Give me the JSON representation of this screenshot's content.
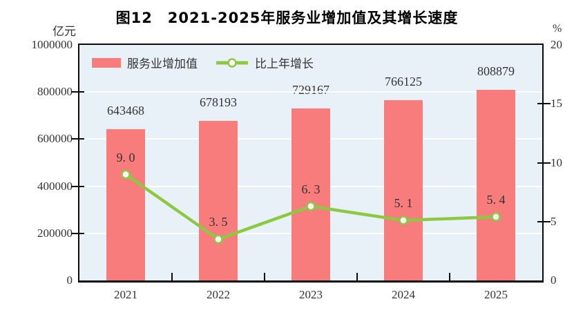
{
  "chart_data": {
    "type": "bar",
    "title": "图12　2021-2025年服务业增加值及其增长速度",
    "categories": [
      "2021",
      "2022",
      "2023",
      "2024",
      "2025"
    ],
    "series": [
      {
        "name": "服务业增加值",
        "type": "bar",
        "axis": "left",
        "values": [
          643468,
          678193,
          729167,
          766125,
          808879
        ],
        "labels": [
          "643468",
          "678193",
          "729167",
          "766125",
          "808879"
        ],
        "color": "#F97C7C"
      },
      {
        "name": "比上年增长",
        "type": "line",
        "axis": "right",
        "values": [
          9.0,
          3.5,
          6.3,
          5.1,
          5.4
        ],
        "labels": [
          "9. 0",
          "3. 5",
          "6. 3",
          "5. 1",
          "5. 4"
        ],
        "color": "#8DC843",
        "marker_fill": "#FFFFFF",
        "marker_stroke": "#8DC843"
      }
    ],
    "left_axis": {
      "unit": "亿元",
      "min": 0,
      "max": 1000000,
      "ticks": [
        0,
        200000,
        400000,
        600000,
        800000,
        1000000
      ],
      "tick_labels": [
        "0",
        "200000",
        "400000",
        "600000",
        "800000",
        "1000000"
      ]
    },
    "right_axis": {
      "unit": "%",
      "min": 0,
      "max": 20,
      "ticks": [
        0,
        5,
        10,
        15,
        20
      ],
      "tick_labels": [
        "0",
        "5",
        "10",
        "15",
        "20"
      ]
    },
    "legend": {
      "position": "top-left-inside",
      "entries": [
        "服务业增加值",
        "比上年增长"
      ]
    },
    "grid": {
      "horizontal": true,
      "color": "#FFFFFF",
      "at": [
        200000,
        400000,
        600000,
        800000
      ]
    },
    "plot_background": "#E9F1F8",
    "frame_color": "#0A0A0A",
    "text_color": "#333333"
  }
}
